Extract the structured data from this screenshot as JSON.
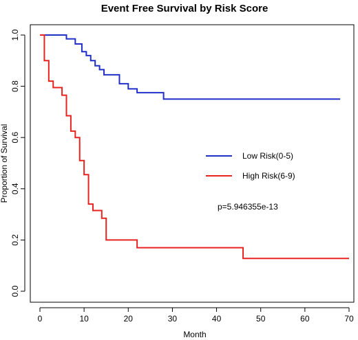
{
  "chart_data": {
    "type": "line",
    "title": "Event Free Survival by Risk Score",
    "xlabel": "Month",
    "ylabel": "Proportion of Survival",
    "xlim": [
      0,
      70
    ],
    "ylim": [
      0,
      1.0
    ],
    "x_ticks": [
      0,
      10,
      20,
      30,
      40,
      50,
      60,
      70
    ],
    "y_ticks": [
      "0.0",
      "0.2",
      "0.4",
      "0.6",
      "0.8",
      "1.0"
    ],
    "step": true,
    "grid": false,
    "legend_position": "right-center",
    "annotation": "p=5.946355e-13",
    "series": [
      {
        "name": "Low Risk(0-5)",
        "color": "#1f2fc8",
        "points": [
          [
            0,
            1.0
          ],
          [
            6,
            0.985
          ],
          [
            8,
            0.965
          ],
          [
            9.5,
            0.935
          ],
          [
            10.5,
            0.92
          ],
          [
            11.5,
            0.9
          ],
          [
            12.5,
            0.88
          ],
          [
            13.5,
            0.865
          ],
          [
            14.5,
            0.845
          ],
          [
            18,
            0.81
          ],
          [
            20,
            0.79
          ],
          [
            22,
            0.775
          ],
          [
            28,
            0.75
          ],
          [
            68,
            0.75
          ]
        ]
      },
      {
        "name": "High Risk(6-9)",
        "color": "#e8231f",
        "points": [
          [
            0,
            1.0
          ],
          [
            1,
            0.9
          ],
          [
            2,
            0.82
          ],
          [
            3,
            0.795
          ],
          [
            5,
            0.765
          ],
          [
            6,
            0.685
          ],
          [
            7,
            0.625
          ],
          [
            8,
            0.6
          ],
          [
            9,
            0.51
          ],
          [
            10,
            0.455
          ],
          [
            11,
            0.34
          ],
          [
            12,
            0.315
          ],
          [
            14,
            0.285
          ],
          [
            15,
            0.2
          ],
          [
            22,
            0.17
          ],
          [
            46,
            0.128
          ],
          [
            70,
            0.128
          ]
        ]
      }
    ]
  }
}
